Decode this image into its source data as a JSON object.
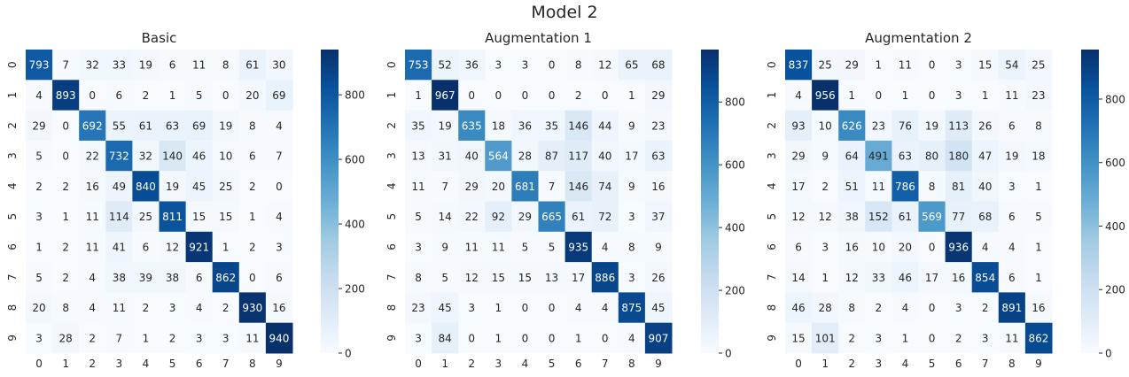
{
  "figure": {
    "suptitle": "Model 2"
  },
  "colors": {
    "low": "#f7fbff",
    "high": "#08306b",
    "text_dark": "#262626",
    "text_light": "#ffffff"
  },
  "chart_data": [
    {
      "type": "heatmap",
      "title": "Basic",
      "x_ticks": [
        "0",
        "1",
        "2",
        "3",
        "4",
        "5",
        "6",
        "7",
        "8",
        "9"
      ],
      "y_ticks": [
        "0",
        "1",
        "2",
        "3",
        "4",
        "5",
        "6",
        "7",
        "8",
        "9"
      ],
      "colorbar": {
        "vmin": 0,
        "vmax": 940,
        "ticks": [
          0,
          200,
          400,
          600,
          800
        ]
      },
      "values": [
        [
          793,
          7,
          32,
          33,
          19,
          6,
          11,
          8,
          61,
          30
        ],
        [
          4,
          893,
          0,
          6,
          2,
          1,
          5,
          0,
          20,
          69
        ],
        [
          29,
          0,
          692,
          55,
          61,
          63,
          69,
          19,
          8,
          4
        ],
        [
          5,
          0,
          22,
          732,
          32,
          140,
          46,
          10,
          6,
          7
        ],
        [
          2,
          2,
          16,
          49,
          840,
          19,
          45,
          25,
          2,
          0
        ],
        [
          3,
          1,
          11,
          114,
          25,
          811,
          15,
          15,
          1,
          4
        ],
        [
          1,
          2,
          11,
          41,
          6,
          12,
          921,
          1,
          2,
          3
        ],
        [
          5,
          2,
          4,
          38,
          39,
          38,
          6,
          862,
          0,
          6
        ],
        [
          20,
          8,
          4,
          11,
          2,
          3,
          4,
          2,
          930,
          16
        ],
        [
          3,
          28,
          2,
          7,
          1,
          2,
          3,
          3,
          11,
          940
        ]
      ]
    },
    {
      "type": "heatmap",
      "title": "Augmentation 1",
      "x_ticks": [
        "0",
        "1",
        "2",
        "3",
        "4",
        "5",
        "6",
        "7",
        "8",
        "9"
      ],
      "y_ticks": [
        "0",
        "1",
        "2",
        "3",
        "4",
        "5",
        "6",
        "7",
        "8",
        "9"
      ],
      "colorbar": {
        "vmin": 0,
        "vmax": 967,
        "ticks": [
          0,
          200,
          400,
          600,
          800
        ]
      },
      "values": [
        [
          753,
          52,
          36,
          3,
          3,
          0,
          8,
          12,
          65,
          68
        ],
        [
          1,
          967,
          0,
          0,
          0,
          0,
          2,
          0,
          1,
          29
        ],
        [
          35,
          19,
          635,
          18,
          36,
          35,
          146,
          44,
          9,
          23
        ],
        [
          13,
          31,
          40,
          564,
          28,
          87,
          117,
          40,
          17,
          63
        ],
        [
          11,
          7,
          29,
          20,
          681,
          7,
          146,
          74,
          9,
          16
        ],
        [
          5,
          14,
          22,
          92,
          29,
          665,
          61,
          72,
          3,
          37
        ],
        [
          3,
          9,
          11,
          11,
          5,
          5,
          935,
          4,
          8,
          9
        ],
        [
          8,
          5,
          12,
          15,
          15,
          13,
          17,
          886,
          3,
          26
        ],
        [
          23,
          45,
          3,
          1,
          0,
          0,
          4,
          4,
          875,
          45
        ],
        [
          3,
          84,
          0,
          1,
          0,
          0,
          1,
          0,
          4,
          907
        ]
      ]
    },
    {
      "type": "heatmap",
      "title": "Augmentation 2",
      "x_ticks": [
        "0",
        "1",
        "2",
        "3",
        "4",
        "5",
        "6",
        "7",
        "8",
        "9"
      ],
      "y_ticks": [
        "0",
        "1",
        "2",
        "3",
        "4",
        "5",
        "6",
        "7",
        "8",
        "9"
      ],
      "colorbar": {
        "vmin": 0,
        "vmax": 956,
        "ticks": [
          0,
          200,
          400,
          600,
          800
        ]
      },
      "values": [
        [
          837,
          25,
          29,
          1,
          11,
          0,
          3,
          15,
          54,
          25
        ],
        [
          4,
          956,
          1,
          0,
          1,
          0,
          3,
          1,
          11,
          23
        ],
        [
          93,
          10,
          626,
          23,
          76,
          19,
          113,
          26,
          6,
          8
        ],
        [
          29,
          9,
          64,
          491,
          63,
          80,
          180,
          47,
          19,
          18
        ],
        [
          17,
          2,
          51,
          11,
          786,
          8,
          81,
          40,
          3,
          1
        ],
        [
          12,
          12,
          38,
          152,
          61,
          569,
          77,
          68,
          6,
          5
        ],
        [
          6,
          3,
          16,
          10,
          20,
          0,
          936,
          4,
          4,
          1
        ],
        [
          14,
          1,
          12,
          33,
          46,
          17,
          16,
          854,
          6,
          1
        ],
        [
          46,
          28,
          8,
          2,
          4,
          0,
          3,
          2,
          891,
          16
        ],
        [
          15,
          101,
          2,
          3,
          1,
          0,
          2,
          3,
          11,
          862
        ]
      ]
    }
  ]
}
